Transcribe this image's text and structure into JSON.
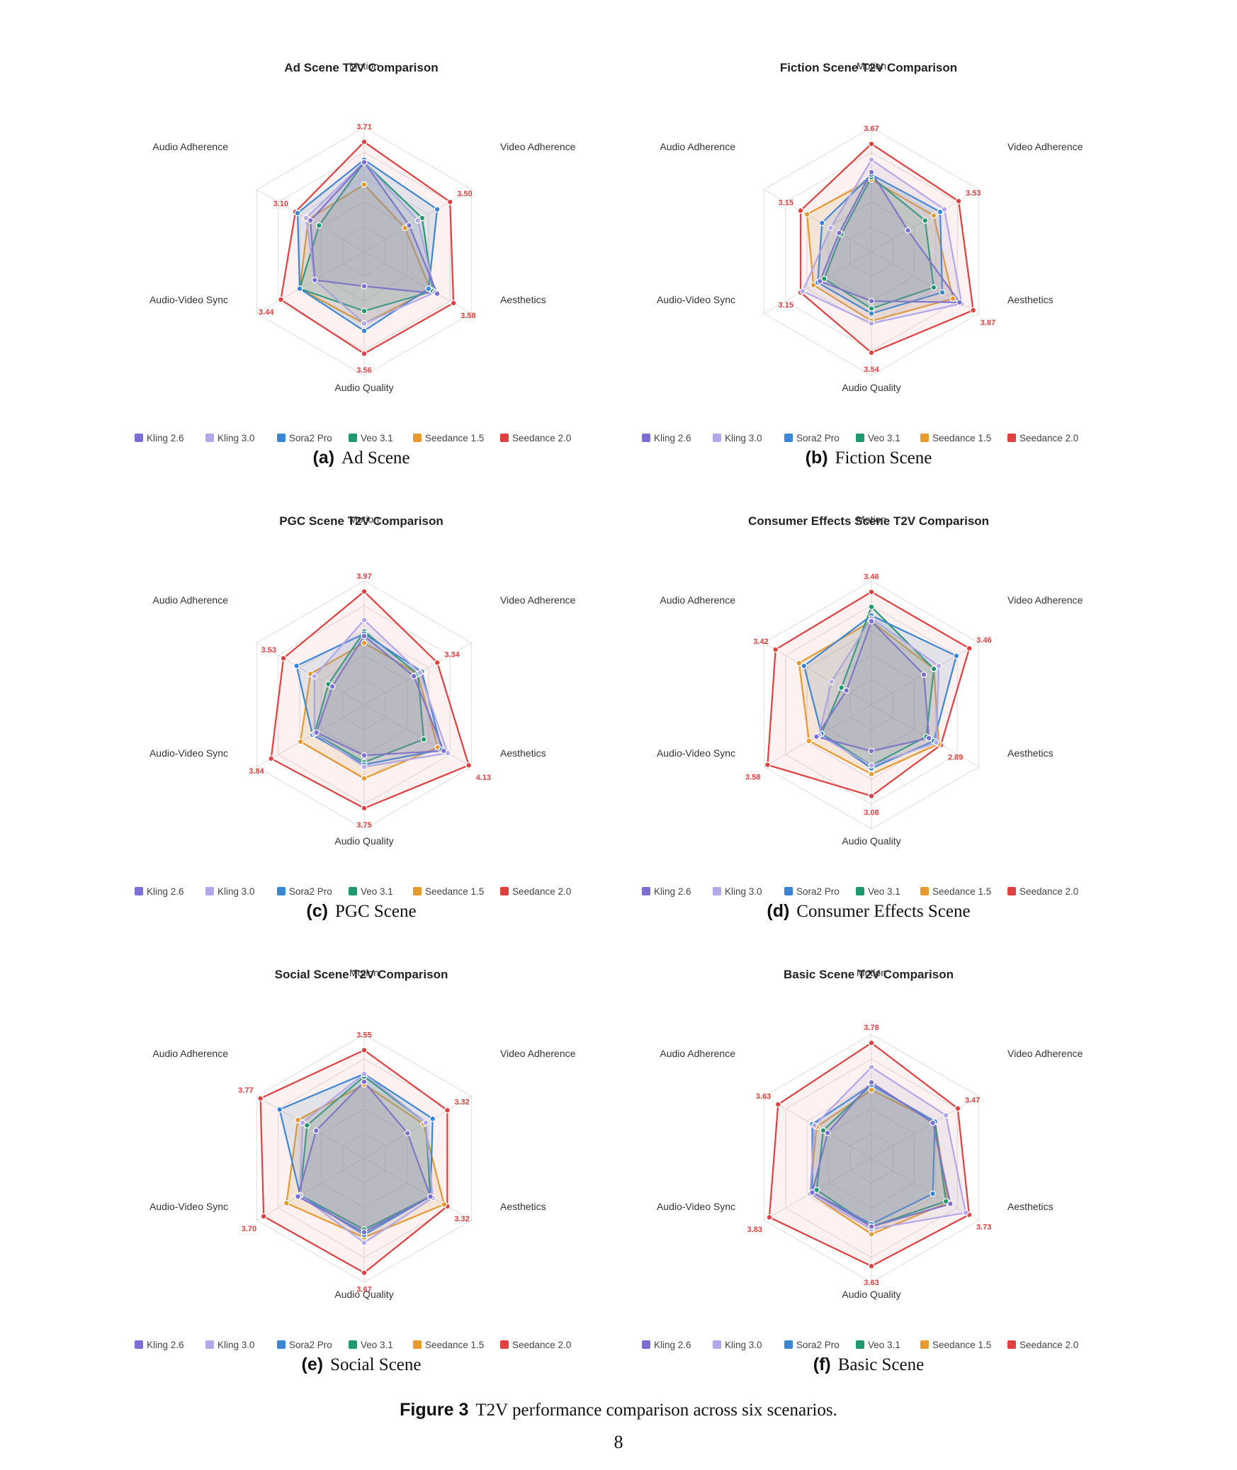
{
  "axes": [
    "Motion",
    "Video Adherence",
    "Aesthetics",
    "Audio Quality",
    "Audio-Video Sync",
    "Audio Adherence"
  ],
  "models": [
    "Kling 2.6",
    "Kling 3.0",
    "Sora2 Pro",
    "Veo 3.1",
    "Seedance 1.5",
    "Seedance 2.0"
  ],
  "colors": {
    "Kling 2.6": "#7b6fd6",
    "Kling 3.0": "#b3a8ec",
    "Sora2 Pro": "#3a86d6",
    "Veo 3.1": "#1f9a6f",
    "Seedance 1.5": "#e99a2c",
    "Seedance 2.0": "#e0403f"
  },
  "chart_data": [
    {
      "type": "radar",
      "title": "Ad Scene T2V Comparison",
      "subcaption_tag": "(a)",
      "subcaption": "Ad Scene",
      "axes": [
        "Motion",
        "Video Adherence",
        "Aesthetics",
        "Audio Quality",
        "Audio-Video Sync",
        "Audio Adherence"
      ],
      "range": [
        1.5,
        4.0
      ],
      "series": [
        {
          "name": "Kling 2.6",
          "values": [
            3.3,
            2.55,
            3.2,
            2.2,
            2.65,
            2.75
          ]
        },
        {
          "name": "Kling 3.0",
          "values": [
            3.3,
            2.75,
            3.15,
            2.95,
            2.65,
            2.85
          ]
        },
        {
          "name": "Sora2 Pro",
          "values": [
            3.35,
            3.2,
            3.0,
            3.1,
            3.0,
            3.05
          ]
        },
        {
          "name": "Veo 3.1",
          "values": [
            3.3,
            2.85,
            3.1,
            2.7,
            3.0,
            2.55
          ]
        },
        {
          "name": "Seedance 1.5",
          "values": [
            2.85,
            2.45,
            3.05,
            2.95,
            3.0,
            2.8
          ]
        },
        {
          "name": "Seedance 2.0",
          "values": [
            3.71,
            3.5,
            3.58,
            3.56,
            3.44,
            3.1
          ]
        }
      ],
      "value_labels": [
        "3.71",
        "3.50",
        "3.58",
        "3.56",
        "3.44",
        "3.10"
      ]
    },
    {
      "type": "radar",
      "title": "Fiction Scene T2V Comparison",
      "subcaption_tag": "(b)",
      "subcaption": "Fiction Scene",
      "axes": [
        "Motion",
        "Video Adherence",
        "Aesthetics",
        "Audio Quality",
        "Audio-Video Sync",
        "Audio Adherence"
      ],
      "range": [
        1.5,
        4.0
      ],
      "series": [
        {
          "name": "Kling 2.6",
          "values": [
            3.1,
            2.35,
            3.55,
            2.5,
            2.7,
            2.25
          ]
        },
        {
          "name": "Kling 3.0",
          "values": [
            3.35,
            3.2,
            3.6,
            2.95,
            3.1,
            2.45
          ]
        },
        {
          "name": "Sora2 Pro",
          "values": [
            3.05,
            3.1,
            3.15,
            2.75,
            2.75,
            2.65
          ]
        },
        {
          "name": "Veo 3.1",
          "values": [
            3.0,
            2.75,
            2.95,
            2.65,
            2.6,
            2.2
          ]
        },
        {
          "name": "Seedance 1.5",
          "values": [
            2.95,
            2.95,
            3.4,
            2.9,
            2.85,
            3.0
          ]
        },
        {
          "name": "Seedance 2.0",
          "values": [
            3.67,
            3.53,
            3.87,
            3.54,
            3.15,
            3.15
          ]
        }
      ],
      "value_labels": [
        "3.67",
        "3.53",
        "3.87",
        "3.54",
        "3.15",
        "3.15"
      ]
    },
    {
      "type": "radar",
      "title": "PGC Scene T2V Comparison",
      "subcaption_tag": "(c)",
      "subcaption": "PGC Scene",
      "axes": [
        "Motion",
        "Video Adherence",
        "Aesthetics",
        "Audio Quality",
        "Audio-Video Sync",
        "Audio Adherence"
      ],
      "range": [
        1.5,
        4.2
      ],
      "series": [
        {
          "name": "Kling 2.6",
          "values": [
            3.0,
            2.75,
            3.5,
            2.6,
            2.7,
            2.3
          ]
        },
        {
          "name": "Kling 3.0",
          "values": [
            3.35,
            2.9,
            3.6,
            2.85,
            2.75,
            2.75
          ]
        },
        {
          "name": "Sora2 Pro",
          "values": [
            3.05,
            2.95,
            3.45,
            2.8,
            2.8,
            3.2
          ]
        },
        {
          "name": "Veo 3.1",
          "values": [
            3.1,
            2.85,
            3.0,
            2.75,
            2.75,
            2.4
          ]
        },
        {
          "name": "Seedance 1.5",
          "values": [
            2.85,
            2.85,
            3.35,
            3.1,
            3.1,
            2.85
          ]
        },
        {
          "name": "Seedance 2.0",
          "values": [
            3.97,
            3.34,
            4.13,
            3.75,
            3.84,
            3.53
          ]
        }
      ],
      "value_labels": [
        "3.97",
        "3.34",
        "4.13",
        "3.75",
        "3.84",
        "3.53"
      ]
    },
    {
      "type": "radar",
      "title": "Consumer Effects Scene T2V Comparison",
      "subcaption_tag": "(d)",
      "subcaption": "Consumer Effects Scene",
      "axes": [
        "Motion",
        "Video Adherence",
        "Aesthetics",
        "Audio Quality",
        "Audio-Video Sync",
        "Audio Adherence"
      ],
      "range": [
        1.5,
        3.65
      ],
      "series": [
        {
          "name": "Kling 2.6",
          "values": [
            2.95,
            2.55,
            2.65,
            2.3,
            2.6,
            2.0
          ]
        },
        {
          "name": "Kling 3.0",
          "values": [
            3.0,
            2.85,
            2.8,
            2.55,
            2.55,
            2.3
          ]
        },
        {
          "name": "Sora2 Pro",
          "values": [
            3.05,
            3.2,
            2.75,
            2.6,
            2.5,
            2.85
          ]
        },
        {
          "name": "Veo 3.1",
          "values": [
            3.2,
            2.75,
            2.6,
            2.55,
            2.5,
            2.1
          ]
        },
        {
          "name": "Seedance 1.5",
          "values": [
            2.95,
            2.75,
            2.85,
            2.7,
            2.75,
            2.95
          ]
        },
        {
          "name": "Seedance 2.0",
          "values": [
            3.46,
            3.46,
            2.89,
            3.08,
            3.58,
            3.42
          ]
        }
      ],
      "value_labels": [
        "3.46",
        "3.46",
        "2.89",
        "3.08",
        "3.58",
        "3.42"
      ]
    },
    {
      "type": "radar",
      "title": "Social Scene T2V Comparison",
      "subcaption_tag": "(e)",
      "subcaption": "Social Scene",
      "axes": [
        "Motion",
        "Video Adherence",
        "Aesthetics",
        "Audio Quality",
        "Audio-Video Sync",
        "Audio Adherence"
      ],
      "range": [
        1.5,
        3.85
      ],
      "series": [
        {
          "name": "Kling 2.6",
          "values": [
            2.95,
            2.45,
            2.95,
            2.9,
            2.95,
            2.55
          ]
        },
        {
          "name": "Kling 3.0",
          "values": [
            3.1,
            2.85,
            3.0,
            3.1,
            2.9,
            2.85
          ]
        },
        {
          "name": "Sora2 Pro",
          "values": [
            3.1,
            3.0,
            2.95,
            2.95,
            2.9,
            3.35
          ]
        },
        {
          "name": "Veo 3.1",
          "values": [
            3.05,
            2.85,
            2.95,
            2.85,
            2.9,
            2.75
          ]
        },
        {
          "name": "Seedance 1.5",
          "values": [
            2.9,
            2.8,
            3.25,
            3.0,
            3.2,
            2.95
          ]
        },
        {
          "name": "Seedance 2.0",
          "values": [
            3.55,
            3.32,
            3.32,
            3.67,
            3.7,
            3.77
          ]
        }
      ],
      "value_labels": [
        "3.55",
        "3.32",
        "3.32",
        "3.67",
        "3.70",
        "3.77"
      ]
    },
    {
      "type": "radar",
      "title": "Basic Scene T2V Comparison",
      "subcaption_tag": "(f)",
      "subcaption": "Basic Scene",
      "axes": [
        "Motion",
        "Video Adherence",
        "Aesthetics",
        "Audio Quality",
        "Audio-Video Sync",
        "Audio Adherence"
      ],
      "range": [
        1.5,
        3.95
      ],
      "series": [
        {
          "name": "Kling 2.6",
          "values": [
            3.0,
            2.9,
            3.3,
            2.85,
            2.85,
            2.5
          ]
        },
        {
          "name": "Kling 3.0",
          "values": [
            3.3,
            3.2,
            3.65,
            2.9,
            2.9,
            2.8
          ]
        },
        {
          "name": "Sora2 Pro",
          "values": [
            2.95,
            2.95,
            2.9,
            2.8,
            2.85,
            2.85
          ]
        },
        {
          "name": "Veo 3.1",
          "values": [
            2.95,
            2.95,
            3.2,
            2.85,
            2.75,
            2.6
          ]
        },
        {
          "name": "Seedance 1.5",
          "values": [
            2.85,
            2.95,
            3.25,
            3.0,
            2.9,
            2.75
          ]
        },
        {
          "name": "Seedance 2.0",
          "values": [
            3.78,
            3.47,
            3.73,
            3.63,
            3.83,
            3.63
          ]
        }
      ],
      "value_labels": [
        "3.78",
        "3.47",
        "3.73",
        "3.63",
        "3.83",
        "3.63"
      ]
    }
  ],
  "figure": {
    "tag": "Figure 3",
    "caption": "T2V performance comparison across six scenarios."
  },
  "page_number": "8"
}
